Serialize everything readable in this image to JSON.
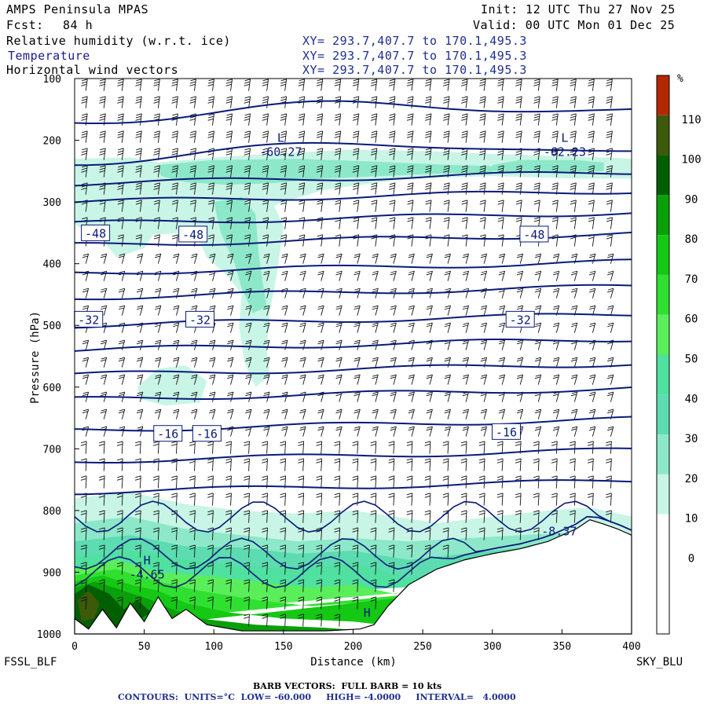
{
  "header": {
    "model": "AMPS Peninsula MPAS",
    "fcst_label": "Fcst:",
    "fcst_value": "84 h",
    "init": "Init: 12 UTC Thu 27 Nov 25",
    "valid": "Valid: 00 UTC Mon 01 Dec 25",
    "fields": [
      {
        "name": "Relative humidity (w.r.t. ice)",
        "xy": "XY= 293.7,407.7 to 170.1,495.3"
      },
      {
        "name": "Temperature",
        "xy": "XY= 293.7,407.7 to 170.1,495.3"
      },
      {
        "name": "Horizontal wind vectors",
        "xy": "XY= 293.7,407.7 to 170.1,495.3"
      }
    ]
  },
  "footer": {
    "left_station": "FSSL_BLF",
    "right_station": "SKY_BLU",
    "barb_note": "BARB VECTORS:  FULL BARB = 10 kts",
    "contours_note": "CONTOURS:  UNITS=°C  LOW= -60.000     HIGH= -4.0000     INTERVAL=   4.0000"
  },
  "chart_data": {
    "type": "heatmap",
    "xlabel": "Distance (km)",
    "ylabel": "Pressure (hPa)",
    "xlim": [
      0,
      400
    ],
    "ylim": [
      1000,
      100
    ],
    "x_ticks": [
      0,
      50,
      100,
      150,
      200,
      250,
      300,
      350,
      400
    ],
    "y_ticks": [
      100,
      200,
      300,
      400,
      500,
      600,
      700,
      800,
      900,
      1000
    ],
    "colorbar": {
      "unit": "%",
      "ticks": [
        0,
        10,
        20,
        30,
        40,
        50,
        60,
        70,
        80,
        90,
        100,
        110
      ],
      "colors": {
        "30": "#c8f5e6",
        "40": "#8ce8c8",
        "50": "#5cdcb0",
        "60": "#50e0a0",
        "70": "#5aee5a",
        "80": "#30e030",
        "90": "#14c814",
        "100": "#0aa00a",
        "110": "#005f00",
        "above": "#3c5a0a",
        "top": "#b42800"
      }
    },
    "temperature_contours": {
      "units": "°C",
      "low": -60,
      "high": -4,
      "interval": 4,
      "color": "#0a1a78",
      "labels": [
        {
          "text": "-48",
          "x": 15,
          "p": 350
        },
        {
          "text": "-48",
          "x": 85,
          "p": 352
        },
        {
          "text": "-48",
          "x": 330,
          "p": 352
        },
        {
          "text": "-32",
          "x": 10,
          "p": 490
        },
        {
          "text": "-32",
          "x": 90,
          "p": 490
        },
        {
          "text": "-32",
          "x": 320,
          "p": 490
        },
        {
          "text": "-16",
          "x": 67,
          "p": 675
        },
        {
          "text": "-16",
          "x": 95,
          "p": 675
        },
        {
          "text": "-16",
          "x": 310,
          "p": 672
        }
      ],
      "extrema": [
        {
          "type": "L",
          "value": "-60.27",
          "x": 148,
          "p": 215
        },
        {
          "type": "L",
          "value": "-62.23",
          "x": 352,
          "p": 215
        },
        {
          "type": "H",
          "value": "-4.65",
          "x": 52,
          "p": 900
        },
        {
          "type": "H",
          "value": "",
          "x": 210,
          "p": 985
        },
        {
          "type": "",
          "value": "-8.37",
          "x": 348,
          "p": 830
        }
      ]
    },
    "wind_barbs": {
      "units": "kts",
      "full_barb": 10
    }
  }
}
